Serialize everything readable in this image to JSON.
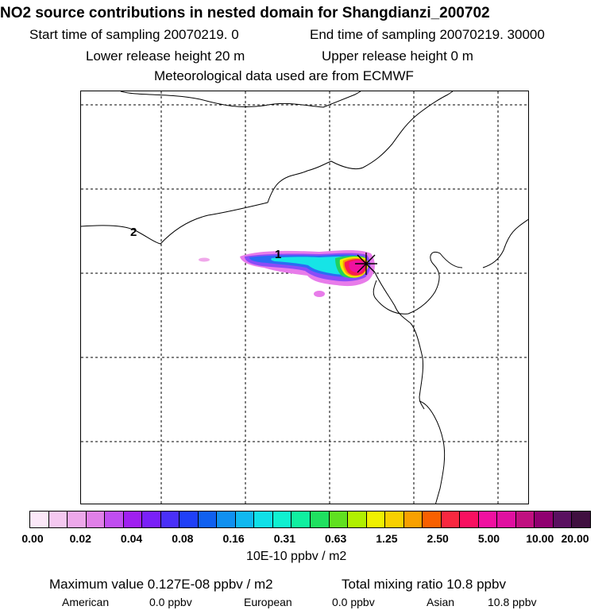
{
  "header": {
    "title": "NO2 source contributions in nested domain for Shangdianzi_200702",
    "start_sampling": "Start time of sampling 20070219.     0",
    "end_sampling": "End time of sampling 20070219. 30000",
    "lower_release": "Lower release height   20 m",
    "upper_release": "Upper release height    0 m",
    "met_data": "Meteorological data used are from ECMWF"
  },
  "map": {
    "source_labels": [
      "1",
      "2"
    ],
    "station_marker": "station-cross-icon"
  },
  "colorbar": {
    "colors": [
      "#fbe8f8",
      "#f4c8f0",
      "#eda8ea",
      "#e080e8",
      "#c04ef0",
      "#a020f0",
      "#7a20f8",
      "#4a30f8",
      "#2040f8",
      "#1060f0",
      "#1090f0",
      "#10b8f0",
      "#10e0e8",
      "#10f0d0",
      "#10f0a0",
      "#20e060",
      "#60e020",
      "#b0f000",
      "#f0f000",
      "#f8d000",
      "#f8a000",
      "#f86000",
      "#f82840",
      "#f81060",
      "#f010a0",
      "#e010a0",
      "#c01080",
      "#900070",
      "#5a1060",
      "#401040"
    ],
    "tick_labels": [
      "0.00",
      "0.02",
      "0.04",
      "0.08",
      "0.16",
      "0.31",
      "0.63",
      "1.25",
      "2.50",
      "5.00",
      "10.00",
      "20.00"
    ],
    "units": "10E-10 ppbv / m2"
  },
  "footer": {
    "max_value": "Maximum value  0.127E-08 ppbv / m2",
    "total_mixing": "Total mixing ratio      10.8 ppbv",
    "american_label": "American",
    "american_value": "0.0 ppbv",
    "european_label": "European",
    "european_value": "0.0 ppbv",
    "asian_label": "Asian",
    "asian_value": "10.8 ppbv"
  }
}
